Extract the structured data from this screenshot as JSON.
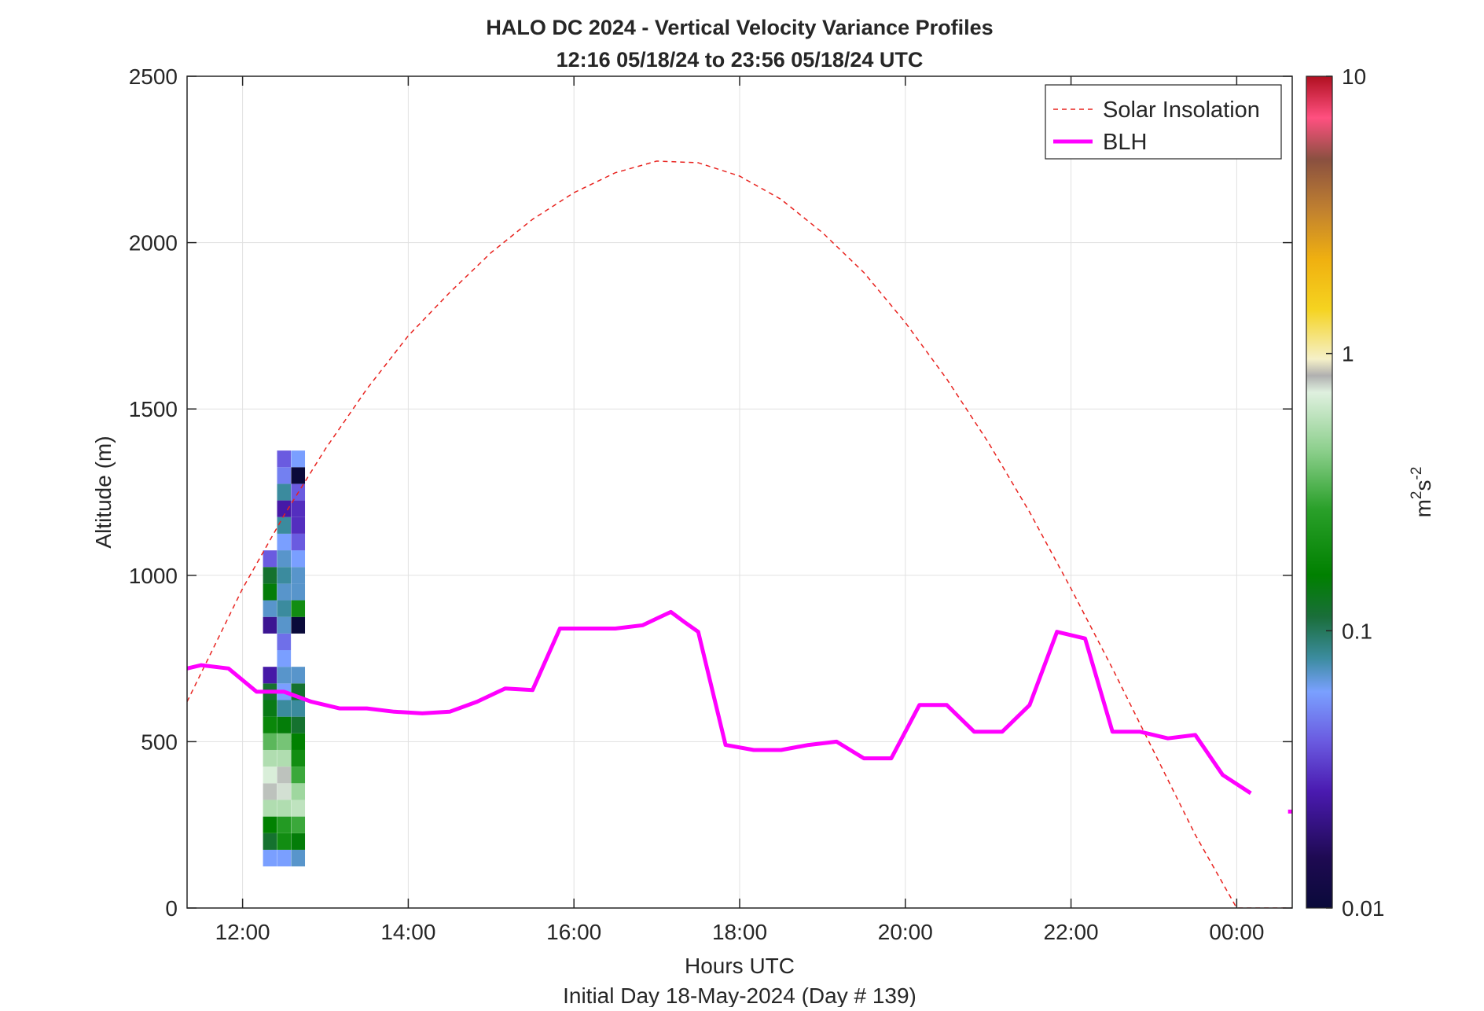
{
  "chart_data": {
    "type": "heatmap",
    "title": "HALO DC 2024 - Vertical Velocity Variance Profiles",
    "subtitle": "12:16 05/18/24 to 23:56 05/18/24  UTC",
    "xlabel": "Hours UTC",
    "xlabel2": "Initial Day 18-May-2024 (Day # 139)",
    "ylabel": "Altitude (m)",
    "x_unit": "hours UTC",
    "xlim": [
      11.33,
      24.67
    ],
    "ylim": [
      0,
      2500
    ],
    "x_ticks": [
      {
        "value": 12,
        "label": "12:00"
      },
      {
        "value": 14,
        "label": "14:00"
      },
      {
        "value": 16,
        "label": "16:00"
      },
      {
        "value": 18,
        "label": "18:00"
      },
      {
        "value": 20,
        "label": "20:00"
      },
      {
        "value": 22,
        "label": "22:00"
      },
      {
        "value": 24,
        "label": "00:00"
      }
    ],
    "y_ticks": [
      {
        "value": 0,
        "label": "0"
      },
      {
        "value": 500,
        "label": "500"
      },
      {
        "value": 1000,
        "label": "1000"
      },
      {
        "value": 1500,
        "label": "1500"
      },
      {
        "value": 2000,
        "label": "2000"
      },
      {
        "value": 2500,
        "label": "2500"
      }
    ],
    "grid": true,
    "legend_position": "top-right",
    "legend": [
      {
        "name": "Solar Insolation",
        "color": "#e8231f",
        "style": "dashed"
      },
      {
        "name": "BLH",
        "color": "#ff00ff",
        "style": "solid"
      }
    ],
    "colorbar": {
      "label": "m²s⁻²",
      "label_base": "m",
      "label_sup1": "2",
      "label_mid": "s",
      "label_sup2": "-2",
      "scale": "log",
      "range": [
        0.01,
        10
      ],
      "ticks": [
        {
          "value": 0.01,
          "label": "0.01"
        },
        {
          "value": 0.1,
          "label": "0.1"
        },
        {
          "value": 1,
          "label": "1"
        },
        {
          "value": 10,
          "label": "10"
        }
      ]
    },
    "heatmap": {
      "time_step_hours": 0.167,
      "altitude_step_m": 50,
      "columns": [
        {
          "t": 12.33,
          "profile": [
            [
              150,
              0.06
            ],
            [
              200,
              0.12
            ],
            [
              250,
              0.16
            ],
            [
              300,
              0.55
            ],
            [
              350,
              0.8
            ],
            [
              400,
              0.7
            ],
            [
              450,
              0.55
            ],
            [
              500,
              0.35
            ],
            [
              550,
              0.18
            ],
            [
              600,
              0.14
            ],
            [
              650,
              0.12
            ],
            [
              700,
              0.025
            ],
            [
              850,
              0.022
            ],
            [
              900,
              0.07
            ],
            [
              950,
              0.15
            ],
            [
              1000,
              0.12
            ],
            [
              1050,
              0.04
            ]
          ]
        },
        {
          "t": 12.5,
          "profile": [
            [
              150,
              0.06
            ],
            [
              200,
              0.2
            ],
            [
              250,
              0.25
            ],
            [
              300,
              0.55
            ],
            [
              350,
              0.75
            ],
            [
              400,
              0.8
            ],
            [
              450,
              0.55
            ],
            [
              500,
              0.4
            ],
            [
              550,
              0.15
            ],
            [
              600,
              0.08
            ],
            [
              650,
              0.06
            ],
            [
              700,
              0.07
            ],
            [
              750,
              0.06
            ],
            [
              800,
              0.045
            ],
            [
              850,
              0.07
            ],
            [
              900,
              0.08
            ],
            [
              950,
              0.07
            ],
            [
              1000,
              0.08
            ],
            [
              1050,
              0.07
            ],
            [
              1100,
              0.06
            ],
            [
              1150,
              0.08
            ],
            [
              1200,
              0.025
            ],
            [
              1250,
              0.08
            ],
            [
              1300,
              0.05
            ],
            [
              1350,
              0.04
            ]
          ]
        },
        {
          "t": 12.67,
          "profile": [
            [
              150,
              0.07
            ],
            [
              200,
              0.15
            ],
            [
              250,
              0.3
            ],
            [
              300,
              0.6
            ],
            [
              350,
              0.5
            ],
            [
              400,
              0.3
            ],
            [
              450,
              0.2
            ],
            [
              500,
              0.16
            ],
            [
              550,
              0.12
            ],
            [
              600,
              0.08
            ],
            [
              650,
              0.12
            ],
            [
              700,
              0.07
            ],
            [
              850,
              0.01
            ],
            [
              900,
              0.2
            ],
            [
              950,
              0.07
            ],
            [
              1000,
              0.07
            ],
            [
              1050,
              0.06
            ],
            [
              1100,
              0.04
            ],
            [
              1150,
              0.03
            ],
            [
              1200,
              0.03
            ],
            [
              1250,
              0.04
            ],
            [
              1300,
              0.01
            ],
            [
              1350,
              0.06
            ]
          ]
        }
      ]
    },
    "solar_insolation": {
      "x": [
        11.33,
        12.0,
        12.5,
        13.0,
        13.5,
        14.0,
        14.5,
        15.0,
        15.5,
        16.0,
        16.5,
        17.0,
        17.5,
        18.0,
        18.5,
        19.0,
        19.5,
        20.0,
        20.5,
        21.0,
        21.5,
        22.0,
        22.5,
        23.0,
        23.5,
        24.0,
        24.3,
        24.67
      ],
      "y": [
        620,
        960,
        1180,
        1380,
        1560,
        1720,
        1850,
        1970,
        2070,
        2150,
        2210,
        2245,
        2240,
        2200,
        2130,
        2030,
        1910,
        1760,
        1590,
        1400,
        1190,
        960,
        720,
        470,
        220,
        0,
        0,
        0
      ]
    },
    "blh": {
      "x": [
        11.33,
        11.5,
        11.83,
        12.17,
        12.5,
        12.83,
        13.17,
        13.5,
        13.83,
        14.17,
        14.5,
        14.83,
        15.17,
        15.5,
        15.83,
        16.17,
        16.5,
        16.83,
        17.0,
        17.17,
        17.33,
        17.5,
        17.83,
        18.17,
        18.5,
        18.83,
        19.17,
        19.5,
        19.83,
        20.17,
        20.5,
        20.83,
        21.17,
        21.5,
        21.83,
        22.17,
        22.5,
        22.83,
        23.17,
        23.5,
        23.83,
        24.17
      ],
      "y": [
        720,
        730,
        720,
        650,
        650,
        620,
        600,
        600,
        590,
        585,
        590,
        620,
        660,
        655,
        840,
        840,
        840,
        850,
        870,
        890,
        860,
        830,
        490,
        475,
        475,
        490,
        500,
        450,
        450,
        610,
        610,
        530,
        530,
        610,
        830,
        810,
        530,
        530,
        510,
        520,
        400,
        345
      ]
    },
    "blh_extra_segment": {
      "x": [
        24.62,
        24.67
      ],
      "y": [
        290,
        290
      ]
    }
  }
}
